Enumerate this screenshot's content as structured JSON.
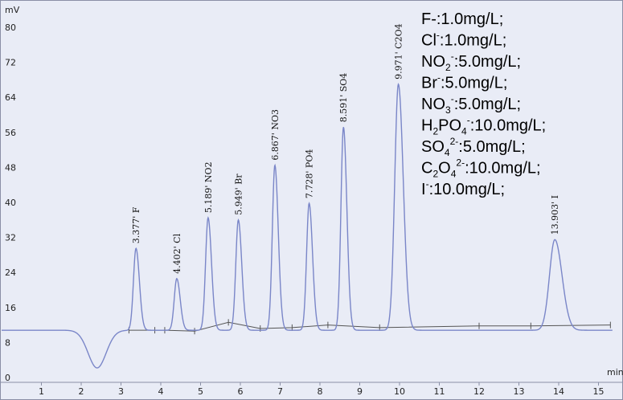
{
  "chart_data": {
    "type": "line",
    "ylabel": "mV",
    "xlabel": "min",
    "xlim": [
      0,
      15.2
    ],
    "ylim": [
      0,
      80
    ],
    "x_ticks": [
      "1",
      "2",
      "3",
      "4",
      "5",
      "6",
      "7",
      "8",
      "9",
      "10",
      "11",
      "12",
      "13",
      "14",
      "15"
    ],
    "y_ticks": [
      "0",
      "8",
      "16",
      "24",
      "32",
      "40",
      "48",
      "56",
      "64",
      "72",
      "80"
    ],
    "baseline": 10.8,
    "dip": {
      "x": 2.4,
      "min": 2.2
    },
    "peaks": [
      {
        "label": "3.377' F",
        "t": 3.377,
        "height": 29.5
      },
      {
        "label": "4.402' Cl",
        "t": 4.402,
        "height": 22.6
      },
      {
        "label": "5.189' NO2",
        "t": 5.189,
        "height": 36.5
      },
      {
        "label": "5.949' Br",
        "t": 5.949,
        "height": 36.0
      },
      {
        "label": "6.867' NO3",
        "t": 6.867,
        "height": 48.5
      },
      {
        "label": "7.728' PO4",
        "t": 7.728,
        "height": 39.8
      },
      {
        "label": "8.591' SO4",
        "t": 8.591,
        "height": 57.2
      },
      {
        "label": "9.971' C2O4",
        "t": 9.971,
        "height": 67.0
      },
      {
        "label": "13.903' I",
        "t": 13.903,
        "height": 31.5
      }
    ],
    "legend": [
      {
        "ion": "F",
        "sup": "",
        "after": "-:1.0mg/L;"
      },
      {
        "ion": "Cl",
        "sup": "-",
        "after": ":1.0mg/L;"
      },
      {
        "ion": "NO",
        "sub": "2",
        "sup": "-",
        "after": ":5.0mg/L;"
      },
      {
        "ion": "Br",
        "sup": "-",
        "after": ":5.0mg/L;"
      },
      {
        "ion": "NO",
        "sub": "3",
        "sup": "-",
        "after": ":5.0mg/L;"
      },
      {
        "ion": "H",
        "sub": "2",
        "ion2": "PO",
        "sub2": "4",
        "sup": "-",
        "after": ":10.0mg/L;"
      },
      {
        "ion": "SO",
        "sub": "4",
        "sup": "2-",
        "after": ":5.0mg/L;"
      },
      {
        "ion": "C",
        "sub": "2",
        "ion2": "O",
        "sub2": "4",
        "sup": "2-",
        "after": ":10.0mg/L;"
      },
      {
        "ion": "I",
        "sup": "-",
        "after": ":10.0mg/L;"
      }
    ]
  }
}
